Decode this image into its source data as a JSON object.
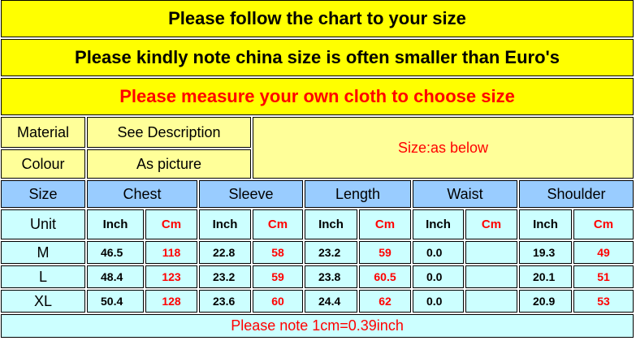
{
  "titles": {
    "line1": "Please follow the chart to your size",
    "line2": "Please kindly note china size is often smaller than Euro's",
    "line3": "Please measure your own cloth to choose size"
  },
  "info": {
    "material_label": "Material",
    "material_value": "See Description",
    "colour_label": "Colour",
    "colour_value": "As picture",
    "size_note": "Size:as below"
  },
  "headers": [
    "Size",
    "Chest",
    "Sleeve",
    "Length",
    "Waist",
    "Shoulder"
  ],
  "unit_row": {
    "label": "Unit",
    "inch": "Inch",
    "cm": "Cm"
  },
  "rows": [
    {
      "size": "M",
      "values": [
        "46.5",
        "118",
        "22.8",
        "58",
        "23.2",
        "59",
        "0.0",
        "",
        "19.3",
        "49"
      ]
    },
    {
      "size": "L",
      "values": [
        "48.4",
        "123",
        "23.2",
        "59",
        "23.8",
        "60.5",
        "0.0",
        "",
        "20.1",
        "51"
      ]
    },
    {
      "size": "XL",
      "values": [
        "50.4",
        "128",
        "23.6",
        "60",
        "24.4",
        "62",
        "0.0",
        "",
        "20.9",
        "53"
      ]
    }
  ],
  "footer_note": "Please note 1cm=0.39inch",
  "colors": {
    "title_bg": "#ffff00",
    "info_bg": "#ffff99",
    "header_bg": "#99ccff",
    "body_bg": "#ccffff",
    "accent_red": "#ff0000"
  }
}
